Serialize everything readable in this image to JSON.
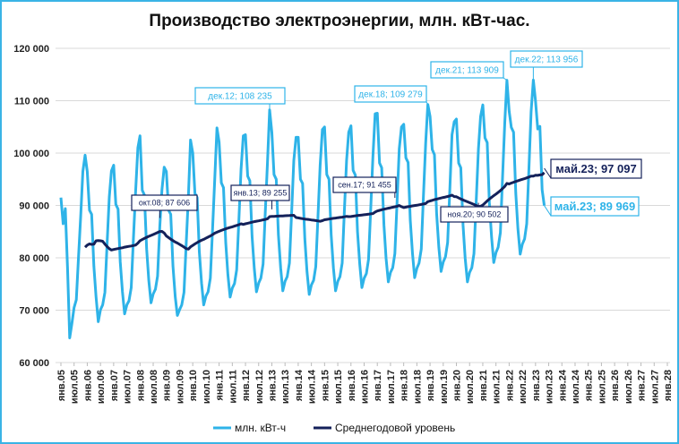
{
  "chart_data": {
    "type": "line",
    "title": "Производство электроэнергии, млн. кВт-час.",
    "xlabel": "",
    "ylabel": "",
    "ylim": [
      60000,
      120000
    ],
    "yticks": [
      60000,
      70000,
      80000,
      90000,
      100000,
      110000,
      120000
    ],
    "ytick_labels": [
      "60 000",
      "70 000",
      "80 000",
      "90 000",
      "100 000",
      "110 000",
      "120 000"
    ],
    "x_range": [
      "2005-01",
      "2028-01"
    ],
    "xtick_labels": [
      "янв.05",
      "июл.05",
      "янв.06",
      "июл.06",
      "янв.07",
      "июл.07",
      "янв.08",
      "июл.08",
      "янв.09",
      "июл.09",
      "янв.10",
      "июл.10",
      "янв.11",
      "июл.11",
      "янв.12",
      "июл.12",
      "янв.13",
      "июл.13",
      "янв.14",
      "июл.14",
      "янв.15",
      "июл.15",
      "янв.16",
      "июл.16",
      "янв.17",
      "июл.17",
      "янв.18",
      "июл.18",
      "янв.19",
      "июл.19",
      "янв.20",
      "июл.20",
      "янв.21",
      "июл.21",
      "янв.22",
      "июл.22",
      "янв.23",
      "июл.23",
      "янв.24",
      "июл.24",
      "янв.25",
      "июл.25",
      "янв.26",
      "июл.26",
      "янв.27",
      "июл.27",
      "янв.28"
    ],
    "grid": true,
    "legend_placement": "bottom",
    "series": [
      {
        "name": "млн. кВт-ч",
        "color": "#2eb3e8",
        "start": "2005-01",
        "values": [
          91500,
          86500,
          89400,
          78000,
          64700,
          67500,
          70500,
          72000,
          80000,
          88000,
          96500,
          99600,
          96500,
          89100,
          88300,
          78400,
          72600,
          67800,
          70100,
          71000,
          73400,
          82500,
          91600,
          96600,
          97700,
          90200,
          89300,
          79300,
          73500,
          69300,
          71000,
          71800,
          74300,
          83500,
          92700,
          101000,
          103300,
          92900,
          92000,
          81700,
          75700,
          71400,
          73100,
          74000,
          76500,
          86000,
          93000,
          97300,
          96500,
          89100,
          88300,
          78400,
          72600,
          69000,
          70100,
          71000,
          73400,
          82500,
          91600,
          102500,
          100000,
          92300,
          91500,
          81200,
          75200,
          71000,
          72700,
          73500,
          76100,
          85500,
          94900,
          104800,
          102100,
          94300,
          93400,
          82900,
          76800,
          72500,
          74200,
          75100,
          77700,
          87300,
          96900,
          103300,
          103500,
          95600,
          94700,
          84100,
          77900,
          73500,
          75200,
          76100,
          78800,
          88500,
          98200,
          108235,
          103900,
          95900,
          95000,
          84400,
          78100,
          73700,
          75500,
          76400,
          79000,
          88800,
          98600,
          103000,
          103000,
          95000,
          94200,
          83600,
          77400,
          73000,
          74800,
          75700,
          78300,
          88000,
          97700,
          104500,
          105000,
          95900,
          95000,
          84400,
          78100,
          73700,
          75500,
          76400,
          79000,
          88800,
          98600,
          104000,
          105200,
          96700,
          95800,
          85000,
          78800,
          74300,
          76100,
          77000,
          79700,
          89500,
          99300,
          107500,
          107600,
          98100,
          97200,
          86300,
          79900,
          75400,
          77200,
          78100,
          80800,
          90800,
          100800,
          105000,
          105500,
          99100,
          98200,
          87200,
          80800,
          76200,
          78000,
          79000,
          81700,
          91800,
          101900,
          109279,
          107000,
          100700,
          99700,
          88500,
          82000,
          77400,
          79200,
          80200,
          82900,
          93200,
          103500,
          106000,
          106500,
          98100,
          97200,
          86300,
          79900,
          75400,
          77200,
          78100,
          80800,
          90800,
          100800,
          107000,
          109200,
          102900,
          102000,
          90500,
          83900,
          79100,
          81000,
          82000,
          84800,
          95300,
          105800,
          113909,
          108000,
          104900,
          104000,
          92300,
          85500,
          80700,
          82600,
          83600,
          86500,
          97200,
          107900,
          113956,
          110000,
          104600,
          105100,
          93000,
          89969
        ]
      },
      {
        "name": "Среднегодовой уровень",
        "color": "#14215a",
        "window_months": 12
      }
    ],
    "annotations": [
      {
        "text": "дек.12; 108 235",
        "series": 0,
        "date": "2012-12",
        "value": 108235
      },
      {
        "text": "дек.18; 109 279",
        "series": 0,
        "date": "2018-12",
        "value": 109279
      },
      {
        "text": "дек.21; 113 909",
        "series": 0,
        "date": "2021-12",
        "value": 113909
      },
      {
        "text": "дек.22; 113 956",
        "series": 0,
        "date": "2022-12",
        "value": 113956
      },
      {
        "text": "май.23; 89 969",
        "series": 0,
        "date": "2023-05",
        "value": 89969
      },
      {
        "text": "окт.08;  87 606",
        "series": 1,
        "date": "2008-10",
        "value": 87606
      },
      {
        "text": "янв.13;  89 255",
        "series": 1,
        "date": "2013-01",
        "value": 89255
      },
      {
        "text": "сен.17;  91 455",
        "series": 1,
        "date": "2017-09",
        "value": 91455
      },
      {
        "text": "ноя.20;  90 502",
        "series": 1,
        "date": "2020-11",
        "value": 90502
      },
      {
        "text": "май.23;  97 097",
        "series": 1,
        "date": "2023-05",
        "value": 97097
      }
    ]
  }
}
